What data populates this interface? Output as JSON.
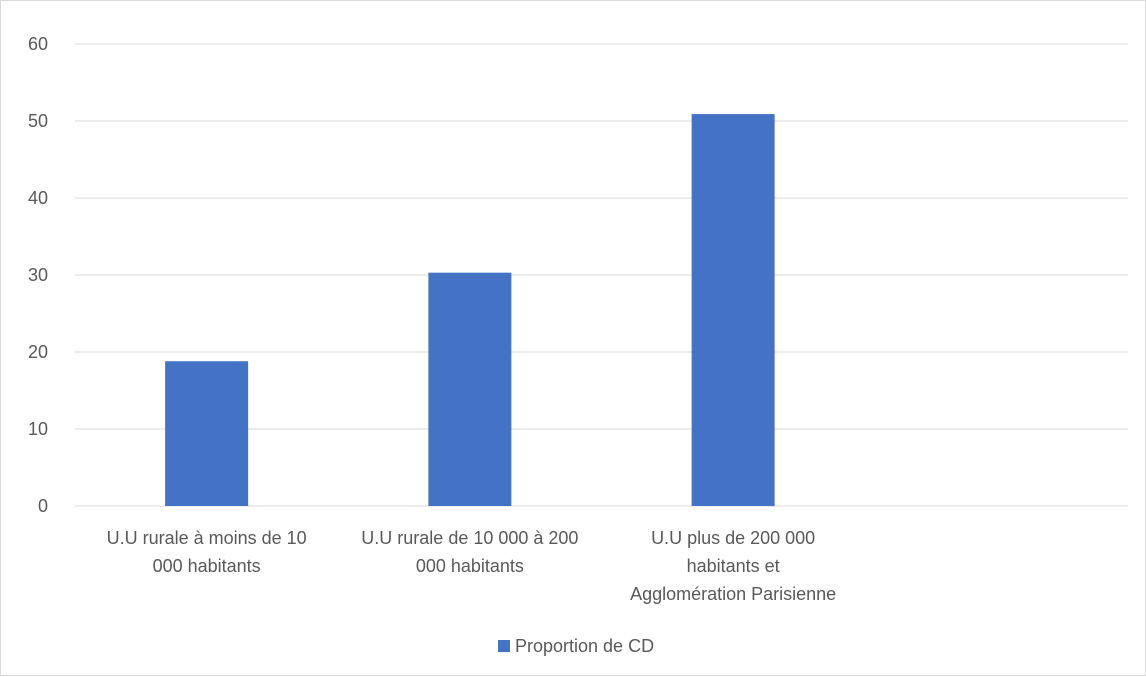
{
  "chart_data": {
    "type": "bar",
    "title": "",
    "xlabel": "",
    "ylabel": "",
    "categories": [
      [
        "U.U rurale à moins de 10",
        "000 habitants"
      ],
      [
        "U.U rurale de 10 000 à 200",
        "000 habitants"
      ],
      [
        "U.U plus de 200 000",
        "habitants et",
        "Agglomération Parisienne"
      ],
      [
        ""
      ]
    ],
    "series": [
      {
        "name": "Proportion de CD",
        "color": "#4472c4",
        "values": [
          18.8,
          30.3,
          50.9,
          null
        ]
      }
    ],
    "ylim": [
      0,
      60
    ],
    "yticks": [
      0,
      10,
      20,
      30,
      40,
      50,
      60
    ],
    "grid": true,
    "legend_position": "bottom"
  },
  "legend": {
    "label": "Proportion de CD"
  }
}
